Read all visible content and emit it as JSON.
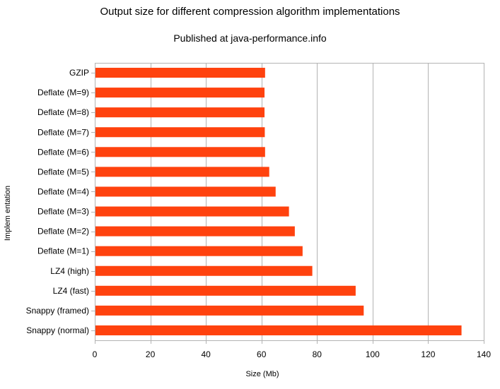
{
  "chart_data": {
    "type": "bar",
    "orientation": "horizontal",
    "title": "Output size for different compression algorithm implementations",
    "subtitle": "Published at java-performance.info",
    "xlabel": "Size (Mb)",
    "ylabel": "Implem entation",
    "xlim": [
      0,
      140
    ],
    "xticks": [
      "0",
      "20",
      "40",
      "60",
      "80",
      "100",
      "120",
      "140"
    ],
    "grid": "vertical",
    "legend": "none",
    "bar_color": "#ff420e",
    "categories": [
      "GZIP",
      "Deflate (M=9)",
      "Deflate (M=8)",
      "Deflate (M=7)",
      "Deflate (M=6)",
      "Deflate (M=5)",
      "Deflate (M=4)",
      "Deflate (M=3)",
      "Deflate (M=2)",
      "Deflate (M=1)",
      "LZ4 (high)",
      "LZ4 (fast)",
      "Snappy (framed)",
      "Snappy (normal)"
    ],
    "values": [
      61.3,
      61.1,
      61.1,
      61.2,
      61.3,
      62.8,
      65.1,
      69.9,
      72.0,
      74.8,
      78.3,
      93.9,
      96.8,
      132.0
    ]
  }
}
